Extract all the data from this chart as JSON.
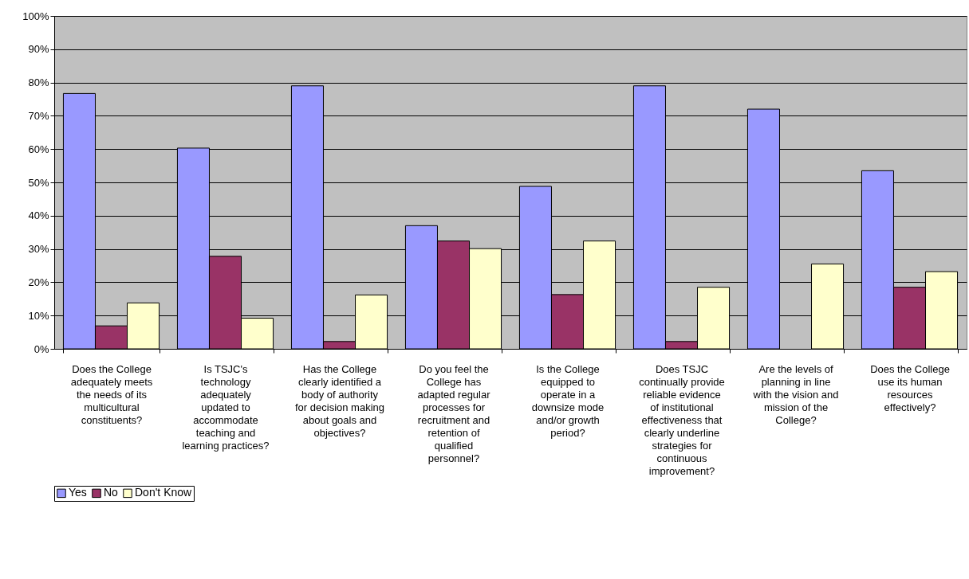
{
  "chart_data": {
    "type": "bar",
    "categories": [
      "Does the College adequately meets the needs of its multicultural constituents?",
      "Is TSJC's technology adequately updated to accommodate teaching and learning practices?",
      "Has the College clearly identified a body of authority for decision making about goals and objectives?",
      "Do you feel the College has adapted regular processes for recruitment and retention of qualified personnel?",
      "Is the College equipped to operate in a downsize mode and/or growth period?",
      "Does TSJC continually provide reliable evidence of institutional effectiveness that clearly underline strategies for continuous improvement?",
      "Are the levels of planning in line with the vision and mission of the College?",
      "Does the College use its human resources effectively?"
    ],
    "series": [
      {
        "name": "Yes",
        "color": "#9999ff",
        "values": [
          76.7,
          60.3,
          79.0,
          37.0,
          48.8,
          79.0,
          72.0,
          53.5
        ]
      },
      {
        "name": "No",
        "color": "#993366",
        "values": [
          6.9,
          27.8,
          2.2,
          32.4,
          16.3,
          2.2,
          null,
          18.5
        ]
      },
      {
        "name": "Don't Know",
        "color": "#ffffcc",
        "values": [
          13.8,
          9.2,
          16.2,
          30.1,
          32.4,
          18.5,
          25.5,
          23.2
        ]
      }
    ],
    "ylim": [
      0,
      100
    ],
    "yticks": [
      {
        "value": 0,
        "label": "0%"
      },
      {
        "value": 10,
        "label": "10%"
      },
      {
        "value": 20,
        "label": "20%"
      },
      {
        "value": 30,
        "label": "30%"
      },
      {
        "value": 40,
        "label": "40%"
      },
      {
        "value": 50,
        "label": "50%"
      },
      {
        "value": 60,
        "label": "60%"
      },
      {
        "value": 70,
        "label": "70%"
      },
      {
        "value": 80,
        "label": "80%"
      },
      {
        "value": 90,
        "label": "90%"
      },
      {
        "value": 100,
        "label": "100%"
      }
    ],
    "grid": "y",
    "legend": "bottom"
  }
}
